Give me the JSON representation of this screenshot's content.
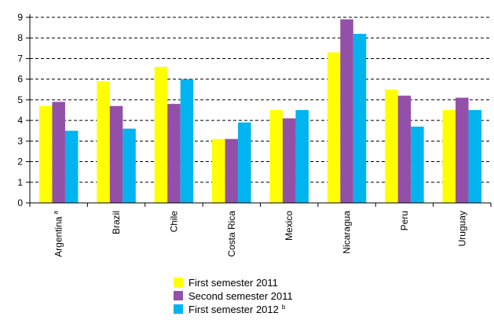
{
  "chart_data": {
    "type": "bar",
    "categories": [
      "Argentina",
      "Brazil",
      "Chile",
      "Costa Rica",
      "Mexico",
      "Nicaragua",
      "Peru",
      "Uruguay"
    ],
    "category_notes": [
      "a",
      "",
      "",
      "",
      "",
      "",
      "",
      ""
    ],
    "series": [
      {
        "name": "First semester 2011",
        "note": "",
        "color": "#ffff00",
        "values": [
          4.7,
          5.9,
          6.6,
          3.1,
          4.5,
          7.3,
          5.5,
          4.5
        ]
      },
      {
        "name": "Second semester 2011",
        "note": "",
        "color": "#9350a8",
        "values": [
          4.9,
          4.7,
          4.8,
          3.1,
          4.1,
          8.9,
          5.2,
          5.1
        ]
      },
      {
        "name": "First semester 2012",
        "note": "b",
        "color": "#00b4f0",
        "values": [
          3.5,
          3.6,
          6.0,
          3.9,
          4.5,
          8.2,
          3.7,
          4.5
        ]
      }
    ],
    "ylim": [
      0,
      9
    ],
    "yticks": [
      "0",
      "1",
      "2",
      "3",
      "4",
      "5",
      "6",
      "7",
      "8",
      "9"
    ],
    "title": "",
    "xlabel": "",
    "ylabel": "",
    "grid": "horizontal dashed",
    "legend_position": "bottom-center"
  }
}
